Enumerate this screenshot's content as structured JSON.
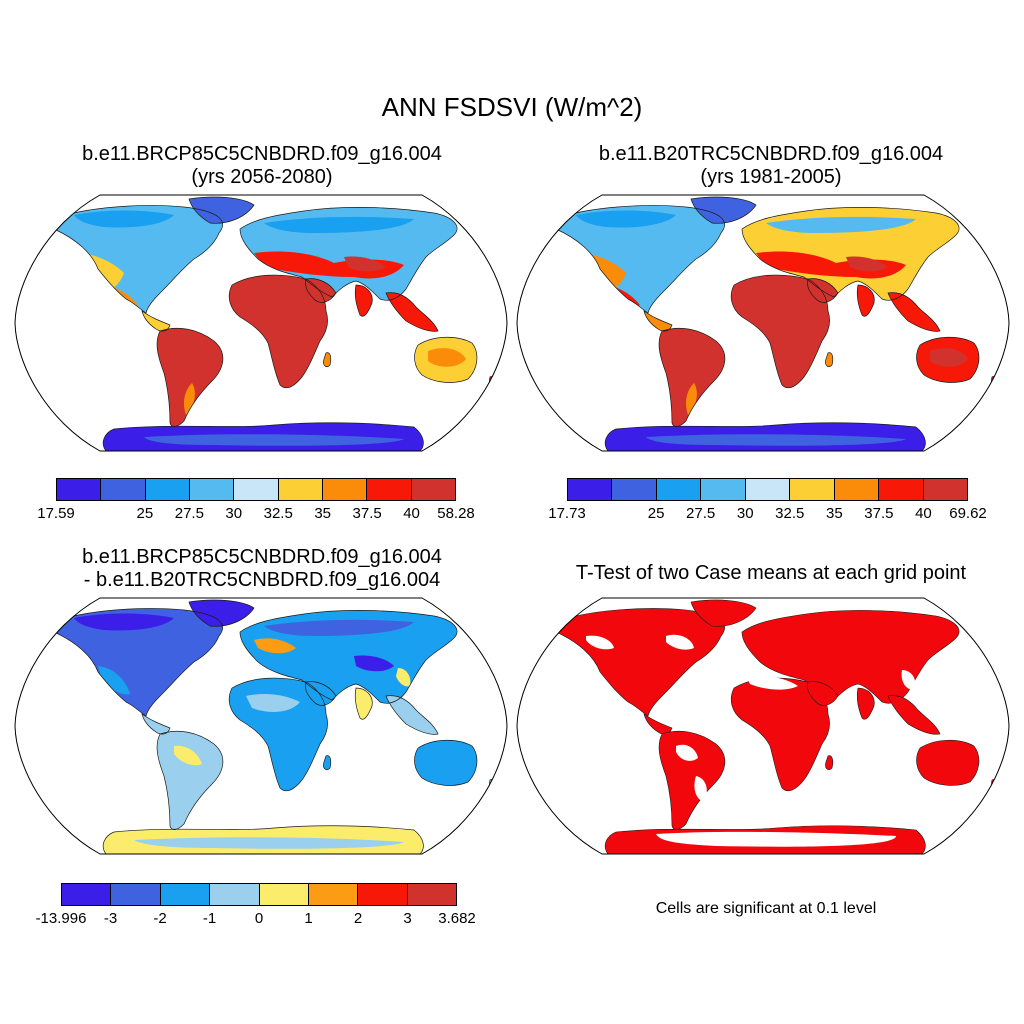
{
  "title": "ANN FSDSVI (W/m^2)",
  "panels": [
    {
      "id": "test_case",
      "title_lines": [
        "b.e11.BRCP85C5CNBDRD.f09_g16.004",
        "(yrs 2056-2080)"
      ],
      "colorbar": {
        "colors": [
          "#3b1ee8",
          "#3f63e0",
          "#1aa0f0",
          "#55baf0",
          "#c9e6f8",
          "#fcd034",
          "#fb8c0a",
          "#f71808",
          "#d2322d"
        ],
        "labels": [
          "17.59",
          "25",
          "27.5",
          "30",
          "32.5",
          "35",
          "37.5",
          "40",
          "58.28"
        ]
      }
    },
    {
      "id": "control_case",
      "title_lines": [
        "b.e11.B20TRC5CNBDRD.f09_g16.004",
        "(yrs 1981-2005)"
      ],
      "colorbar": {
        "colors": [
          "#3b1ee8",
          "#3f63e0",
          "#1aa0f0",
          "#55baf0",
          "#c9e6f8",
          "#fcd034",
          "#fb8c0a",
          "#f71808",
          "#d2322d"
        ],
        "labels": [
          "17.73",
          "25",
          "27.5",
          "30",
          "32.5",
          "35",
          "37.5",
          "40",
          "69.62"
        ]
      }
    },
    {
      "id": "difference",
      "title_lines": [
        "b.e11.BRCP85C5CNBDRD.f09_g16.004",
        "- b.e11.B20TRC5CNBDRD.f09_g16.004"
      ],
      "colorbar": {
        "colors": [
          "#3b1ee8",
          "#3f63e0",
          "#1aa0f0",
          "#9ad0ee",
          "#fcec6c",
          "#fb9c14",
          "#f71808",
          "#d2322d"
        ],
        "labels": [
          "-13.996",
          "-3",
          "-2",
          "-1",
          "0",
          "1",
          "2",
          "3",
          "3.682"
        ]
      }
    },
    {
      "id": "ttest",
      "title_lines": [
        "T-Test of two Case means at each grid point"
      ],
      "note": "Cells are significant at 0.1 level",
      "fill_color": "#f2080c"
    }
  ]
}
